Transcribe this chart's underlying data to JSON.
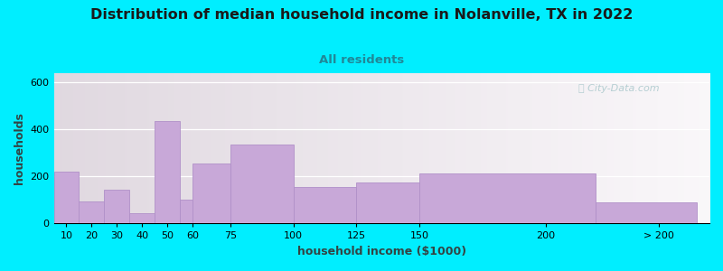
{
  "title": "Distribution of median household income in Nolanville, TX in 2022",
  "subtitle": "All residents",
  "xlabel": "household income ($1000)",
  "ylabel": "households",
  "bar_labels": [
    "10",
    "20",
    "30",
    "40",
    "50",
    "60",
    "75",
    "100",
    "125",
    "150",
    "200",
    "> 200"
  ],
  "bar_values": [
    220,
    95,
    145,
    45,
    435,
    100,
    255,
    335,
    155,
    175,
    215,
    90
  ],
  "bar_color": "#c8a8d8",
  "bar_edge_color": "#b090c8",
  "ylim": [
    0,
    640
  ],
  "yticks": [
    0,
    200,
    400,
    600
  ],
  "background_outer": "#00eeff",
  "title_fontsize": 11.5,
  "subtitle_fontsize": 9.5,
  "subtitle_color": "#208898",
  "axis_label_fontsize": 9,
  "watermark": "City-Data.com"
}
